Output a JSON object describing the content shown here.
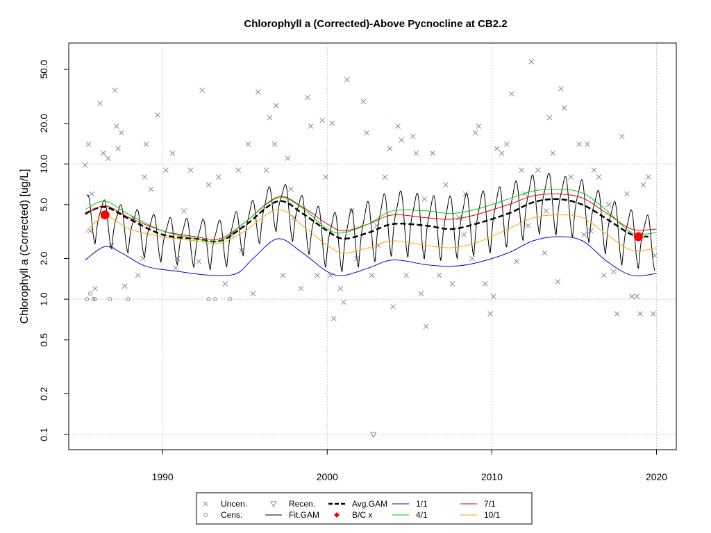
{
  "chart_data": {
    "type": "scatter",
    "title": "Chlorophyll a (Corrected)-Above Pycnocline at CB2.2",
    "ylabel": "Chlorophyll a (Corrected) [ug/L]",
    "xlabel": "",
    "y_scale": "log",
    "xlim": [
      1984.3,
      2021.2
    ],
    "ylim": [
      0.08,
      80
    ],
    "grid": true,
    "legend_position": "bottom",
    "x_ticks": [
      1990,
      2000,
      2010,
      2020
    ],
    "y_ticks": [
      0.1,
      0.2,
      0.5,
      1.0,
      2.0,
      5.0,
      10.0,
      20.0,
      50.0
    ],
    "y_tick_labels": [
      "0.1",
      "0.2",
      "0.5",
      "1.0",
      "2.0",
      "5.0",
      "10.0",
      "20.0",
      "50.0"
    ],
    "colors": {
      "points": "#7b8ca0",
      "fit_gam": "#000000",
      "avg_gam": "#000000",
      "q_1_1": "#0000cd",
      "q_4_1": "#00c800",
      "q_7_1": "#e00000",
      "q_10_1": "#ffa500",
      "bc": "#ff0000",
      "grid": "#c8c8c8"
    },
    "legend": [
      {
        "label": "Uncen.",
        "symbol": "x"
      },
      {
        "label": "Cens.",
        "symbol": "circle"
      },
      {
        "label": "Recen.",
        "symbol": "triangle-down"
      },
      {
        "label": "Fit.GAM",
        "symbol": "line"
      },
      {
        "label": "Avg.GAM",
        "symbol": "dashed"
      },
      {
        "label": "B/C x",
        "symbol": "diamond"
      },
      {
        "label": "1/1",
        "symbol": "line"
      },
      {
        "label": "4/1",
        "symbol": "line"
      },
      {
        "label": "7/1",
        "symbol": "line"
      },
      {
        "label": "10/1",
        "symbol": "line"
      }
    ],
    "series": [
      {
        "name": "Avg.GAM",
        "x": [
          1985.3,
          1986.5,
          1988,
          1990,
          1992,
          1993.5,
          1995,
          1997,
          1998.5,
          2000,
          2001,
          2002.5,
          2004,
          2006,
          2007.5,
          2009,
          2011,
          2012.5,
          2014,
          2015.5,
          2017,
          2018.5,
          2019.5
        ],
        "y": [
          4.3,
          4.8,
          3.9,
          3.0,
          2.8,
          2.7,
          3.5,
          5.3,
          4.3,
          3.2,
          2.8,
          3.1,
          3.6,
          3.5,
          3.3,
          3.6,
          4.3,
          5.2,
          5.5,
          5.0,
          3.9,
          3.0,
          2.9
        ]
      },
      {
        "name": "7/1",
        "x": [
          1985.3,
          1986.5,
          1988,
          1990,
          1992,
          1993.5,
          1995,
          1997,
          1998.5,
          2000,
          2001,
          2002.5,
          2004,
          2006,
          2007.5,
          2009,
          2011,
          2012.5,
          2014,
          2015.5,
          2017,
          2018.5,
          2020
        ],
        "y": [
          4.2,
          4.9,
          4.0,
          3.2,
          2.9,
          2.8,
          3.7,
          5.7,
          4.8,
          3.6,
          3.2,
          3.6,
          4.2,
          4.0,
          3.9,
          4.2,
          5.0,
          5.8,
          6.0,
          5.6,
          4.3,
          3.3,
          3.3
        ]
      },
      {
        "name": "4/1",
        "x": [
          1985.3,
          1986.5,
          1988,
          1990,
          1992,
          1993.5,
          1995,
          1997,
          1998.5,
          2000,
          2001,
          2002.5,
          2004,
          2006,
          2007.5,
          2009,
          2011,
          2012.5,
          2014,
          2015.5,
          2017,
          2018.5,
          2020
        ],
        "y": [
          4.6,
          5.3,
          4.2,
          3.2,
          2.8,
          2.7,
          3.7,
          5.6,
          4.7,
          3.3,
          3.1,
          3.6,
          4.5,
          4.5,
          4.3,
          4.6,
          5.5,
          6.3,
          6.5,
          6.1,
          4.5,
          3.1,
          3.1
        ]
      },
      {
        "name": "10/1",
        "x": [
          1985.3,
          1986.5,
          1988,
          1990,
          1992,
          1993.5,
          1995,
          1997,
          1998.5,
          2000,
          2001,
          2002.5,
          2004,
          2006,
          2007.5,
          2009,
          2011,
          2012.5,
          2014,
          2015.5,
          2017,
          2018.5,
          2020
        ],
        "y": [
          3.1,
          4.1,
          3.3,
          2.9,
          2.7,
          2.6,
          3.2,
          4.6,
          3.5,
          2.5,
          2.2,
          2.4,
          2.7,
          2.5,
          2.4,
          2.6,
          3.3,
          4.0,
          4.2,
          4.0,
          3.0,
          2.3,
          2.4
        ]
      },
      {
        "name": "1/1",
        "x": [
          1985.3,
          1986.5,
          1987.5,
          1989,
          1991,
          1993,
          1994.5,
          1995.5,
          1997,
          1998.5,
          2000,
          2001,
          2002.5,
          2004,
          2006,
          2007.5,
          2009,
          2011,
          2012.5,
          2014,
          2015.5,
          2017,
          2018.5,
          2020
        ],
        "y": [
          1.95,
          2.45,
          2.2,
          1.75,
          1.6,
          1.5,
          1.55,
          2.0,
          2.8,
          2.2,
          1.6,
          1.5,
          1.7,
          1.95,
          1.8,
          1.75,
          1.85,
          2.2,
          2.7,
          2.9,
          2.7,
          1.9,
          1.5,
          1.55
        ]
      }
    ],
    "bc_points": [
      {
        "x": 1986.5,
        "y": 4.2
      },
      {
        "x": 2018.9,
        "y": 2.9
      }
    ],
    "censored_points": [
      {
        "x": 1985.4,
        "y": 1.0
      },
      {
        "x": 1985.8,
        "y": 1.0
      },
      {
        "x": 1986.8,
        "y": 1.0
      },
      {
        "x": 1987.9,
        "y": 1.0
      },
      {
        "x": 1992.8,
        "y": 1.0
      },
      {
        "x": 1993.2,
        "y": 1.0
      },
      {
        "x": 1994.1,
        "y": 1.0
      },
      {
        "x": 1985.6,
        "y": 1.1
      },
      {
        "x": 1985.9,
        "y": 1.0
      }
    ],
    "recensored_points": [
      {
        "x": 2002.8,
        "y": 0.1
      }
    ],
    "uncensored_points": [
      {
        "x": 1985.3,
        "y": 9.8
      },
      {
        "x": 1985.5,
        "y": 14
      },
      {
        "x": 1985.7,
        "y": 6
      },
      {
        "x": 1986.2,
        "y": 28
      },
      {
        "x": 1986.4,
        "y": 12
      },
      {
        "x": 1986.7,
        "y": 11
      },
      {
        "x": 1987.1,
        "y": 35
      },
      {
        "x": 1987.3,
        "y": 13
      },
      {
        "x": 1987.5,
        "y": 17
      },
      {
        "x": 1987.2,
        "y": 19
      },
      {
        "x": 1985.6,
        "y": 3.2
      },
      {
        "x": 1985.9,
        "y": 1.2
      },
      {
        "x": 1986.9,
        "y": 2.5
      },
      {
        "x": 1987.7,
        "y": 1.25
      },
      {
        "x": 1988.2,
        "y": 4
      },
      {
        "x": 1988.5,
        "y": 1.5
      },
      {
        "x": 1988.9,
        "y": 8
      },
      {
        "x": 1989.0,
        "y": 14
      },
      {
        "x": 1989.3,
        "y": 6.5
      },
      {
        "x": 1989.7,
        "y": 23
      },
      {
        "x": 1990.2,
        "y": 9
      },
      {
        "x": 1990.6,
        "y": 12
      },
      {
        "x": 1990.9,
        "y": 2.0
      },
      {
        "x": 1991.3,
        "y": 4.5
      },
      {
        "x": 1991.7,
        "y": 9
      },
      {
        "x": 1992.2,
        "y": 1.9
      },
      {
        "x": 1992.4,
        "y": 35
      },
      {
        "x": 1992.8,
        "y": 7
      },
      {
        "x": 1993.4,
        "y": 8
      },
      {
        "x": 1993.8,
        "y": 1.3
      },
      {
        "x": 1994.2,
        "y": 3
      },
      {
        "x": 1994.6,
        "y": 9
      },
      {
        "x": 1995.2,
        "y": 14
      },
      {
        "x": 1995.5,
        "y": 1.1
      },
      {
        "x": 1995.8,
        "y": 34
      },
      {
        "x": 1996.3,
        "y": 9
      },
      {
        "x": 1996.5,
        "y": 22
      },
      {
        "x": 1996.8,
        "y": 14
      },
      {
        "x": 1996.9,
        "y": 27
      },
      {
        "x": 1997.3,
        "y": 1.5
      },
      {
        "x": 1997.6,
        "y": 11
      },
      {
        "x": 1998.0,
        "y": 4
      },
      {
        "x": 1998.4,
        "y": 1.2
      },
      {
        "x": 1998.8,
        "y": 31
      },
      {
        "x": 1999.0,
        "y": 19
      },
      {
        "x": 1999.4,
        "y": 1.5
      },
      {
        "x": 1999.7,
        "y": 21
      },
      {
        "x": 1999.9,
        "y": 8
      },
      {
        "x": 2000.2,
        "y": 1.5
      },
      {
        "x": 2000.3,
        "y": 20
      },
      {
        "x": 2000.4,
        "y": 0.72
      },
      {
        "x": 2000.8,
        "y": 1.2
      },
      {
        "x": 2001.0,
        "y": 0.95
      },
      {
        "x": 2001.2,
        "y": 42
      },
      {
        "x": 2001.5,
        "y": 4.5
      },
      {
        "x": 2001.8,
        "y": 2.0
      },
      {
        "x": 2002.2,
        "y": 29
      },
      {
        "x": 2002.4,
        "y": 17
      },
      {
        "x": 2002.7,
        "y": 1.5
      },
      {
        "x": 2003.1,
        "y": 2.5
      },
      {
        "x": 2003.5,
        "y": 8
      },
      {
        "x": 2003.8,
        "y": 13
      },
      {
        "x": 2004.0,
        "y": 0.88
      },
      {
        "x": 2004.3,
        "y": 19
      },
      {
        "x": 2004.5,
        "y": 15
      },
      {
        "x": 2004.8,
        "y": 1.5
      },
      {
        "x": 2005.2,
        "y": 16
      },
      {
        "x": 2005.4,
        "y": 12
      },
      {
        "x": 2005.7,
        "y": 1.1
      },
      {
        "x": 2006.0,
        "y": 0.63
      },
      {
        "x": 2006.4,
        "y": 12
      },
      {
        "x": 2006.8,
        "y": 1.5
      },
      {
        "x": 2007.2,
        "y": 7
      },
      {
        "x": 2007.6,
        "y": 1.3
      },
      {
        "x": 2008.0,
        "y": 4
      },
      {
        "x": 2008.4,
        "y": 6
      },
      {
        "x": 2008.8,
        "y": 2.0
      },
      {
        "x": 2009.0,
        "y": 17
      },
      {
        "x": 2009.2,
        "y": 19
      },
      {
        "x": 2009.6,
        "y": 1.3
      },
      {
        "x": 2009.9,
        "y": 0.78
      },
      {
        "x": 2010.1,
        "y": 1.05
      },
      {
        "x": 2010.3,
        "y": 13
      },
      {
        "x": 2010.6,
        "y": 12
      },
      {
        "x": 2010.9,
        "y": 14
      },
      {
        "x": 2011.2,
        "y": 33
      },
      {
        "x": 2011.5,
        "y": 1.9
      },
      {
        "x": 2011.8,
        "y": 9
      },
      {
        "x": 2012.2,
        "y": 3.5
      },
      {
        "x": 2012.4,
        "y": 57
      },
      {
        "x": 2012.8,
        "y": 9
      },
      {
        "x": 2013.2,
        "y": 2.2
      },
      {
        "x": 2013.5,
        "y": 22
      },
      {
        "x": 2013.7,
        "y": 12
      },
      {
        "x": 2014.0,
        "y": 1.35
      },
      {
        "x": 2014.2,
        "y": 36
      },
      {
        "x": 2014.4,
        "y": 26
      },
      {
        "x": 2014.8,
        "y": 8
      },
      {
        "x": 2015.3,
        "y": 14
      },
      {
        "x": 2015.6,
        "y": 3
      },
      {
        "x": 2015.8,
        "y": 14
      },
      {
        "x": 2016.2,
        "y": 9
      },
      {
        "x": 2016.5,
        "y": 8
      },
      {
        "x": 2016.8,
        "y": 1.5
      },
      {
        "x": 2017.1,
        "y": 5
      },
      {
        "x": 2017.4,
        "y": 1.6
      },
      {
        "x": 2017.6,
        "y": 0.78
      },
      {
        "x": 2017.9,
        "y": 16
      },
      {
        "x": 2018.2,
        "y": 6
      },
      {
        "x": 2018.5,
        "y": 1.05
      },
      {
        "x": 2018.8,
        "y": 1.05
      },
      {
        "x": 2019.0,
        "y": 0.78
      },
      {
        "x": 2019.2,
        "y": 7
      },
      {
        "x": 2019.5,
        "y": 8
      },
      {
        "x": 2019.8,
        "y": 0.78
      },
      {
        "x": 2019.9,
        "y": 2.1
      },
      {
        "x": 1988.8,
        "y": 2.0
      },
      {
        "x": 1990.8,
        "y": 1.7
      },
      {
        "x": 1994.8,
        "y": 2.3
      },
      {
        "x": 1997.8,
        "y": 6.5
      },
      {
        "x": 2003.0,
        "y": 3.5
      },
      {
        "x": 2005.9,
        "y": 5.5
      },
      {
        "x": 2008.3,
        "y": 3
      },
      {
        "x": 2012.0,
        "y": 6
      },
      {
        "x": 2013.3,
        "y": 4.5
      },
      {
        "x": 2016.0,
        "y": 3.2
      }
    ],
    "fit_gam": {
      "start_year": 1985.4,
      "end_year": 2019.9,
      "period_years": 1.0,
      "peak": [
        [
          1985.3,
          6.2
        ],
        [
          1990,
          4.2
        ],
        [
          1993.5,
          4.0
        ],
        [
          1995,
          5.0
        ],
        [
          1997,
          8.0
        ],
        [
          2000,
          4.6
        ],
        [
          2001,
          4.6
        ],
        [
          2004,
          6.8
        ],
        [
          2007,
          6.0
        ],
        [
          2010,
          6.8
        ],
        [
          2013,
          9.2
        ],
        [
          2015.5,
          8.0
        ],
        [
          2018,
          5.0
        ],
        [
          2019.9,
          4.2
        ]
      ],
      "trough": [
        [
          1985.3,
          2.5
        ],
        [
          1990,
          1.75
        ],
        [
          1993.5,
          1.5
        ],
        [
          1995,
          2.0
        ],
        [
          1997,
          3.0
        ],
        [
          2000,
          1.55
        ],
        [
          2001,
          1.45
        ],
        [
          2004,
          1.9
        ],
        [
          2007,
          1.75
        ],
        [
          2010,
          2.0
        ],
        [
          2013,
          2.8
        ],
        [
          2015.5,
          2.6
        ],
        [
          2018,
          1.6
        ],
        [
          2019.9,
          1.5
        ]
      ]
    }
  }
}
